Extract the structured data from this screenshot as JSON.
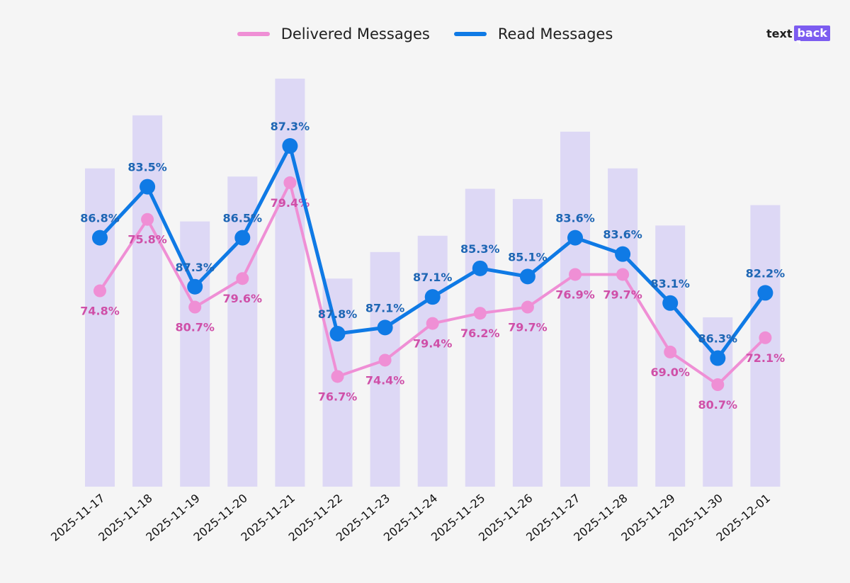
{
  "legend": {
    "delivered_label": "Delivered Messages",
    "read_label": "Read Messages"
  },
  "logo": {
    "part1": "text",
    "part2": "back"
  },
  "colors": {
    "background": "#f5f5f5",
    "bars": "#ddd8f5",
    "delivered": "#ef8fd5",
    "delivered_label": "#cf4fa8",
    "read": "#0f7ae5",
    "read_label": "#1e66b4",
    "logo_accent": "#7c5cf0"
  },
  "chart_data": {
    "type": "line",
    "categories": [
      "2025-11-17",
      "2025-11-18",
      "2025-11-19",
      "2025-11-20",
      "2025-11-21",
      "2025-11-22",
      "2025-11-23",
      "2025-11-24",
      "2025-11-25",
      "2025-11-26",
      "2025-11-27",
      "2025-11-28",
      "2025-11-29",
      "2025-11-30",
      "2025-12-01"
    ],
    "bars": {
      "values": [
        0.78,
        0.91,
        0.65,
        0.76,
        1.0,
        0.51,
        0.575,
        0.615,
        0.73,
        0.705,
        0.87,
        0.78,
        0.64,
        0.415,
        0.69
      ]
    },
    "series": [
      {
        "name": "Delivered Messages",
        "level": [
          0.48,
          0.655,
          0.44,
          0.51,
          0.745,
          0.27,
          0.31,
          0.4,
          0.425,
          0.44,
          0.52,
          0.52,
          0.33,
          0.25,
          0.365
        ],
        "labels": [
          "74.8%",
          "75.8%",
          "80.7%",
          "79.6%",
          "79.4%",
          "76.7%",
          "74.4%",
          "79.4%",
          "76.2%",
          "79.7%",
          "76.9%",
          "79.7%",
          "69.0%",
          "80.7%",
          "72.1%"
        ]
      },
      {
        "name": "Read Messages",
        "level": [
          0.61,
          0.735,
          0.49,
          0.61,
          0.835,
          0.375,
          0.39,
          0.465,
          0.535,
          0.515,
          0.61,
          0.57,
          0.45,
          0.315,
          0.475
        ],
        "labels": [
          "86.8%",
          "83.5%",
          "87.3%",
          "86.5%",
          "87.3%",
          "87.8%",
          "87.1%",
          "87.1%",
          "85.3%",
          "85.1%",
          "83.6%",
          "83.6%",
          "83.1%",
          "86.3%",
          "82.2%"
        ]
      }
    ],
    "grid": false,
    "legend_position": "top-center"
  }
}
